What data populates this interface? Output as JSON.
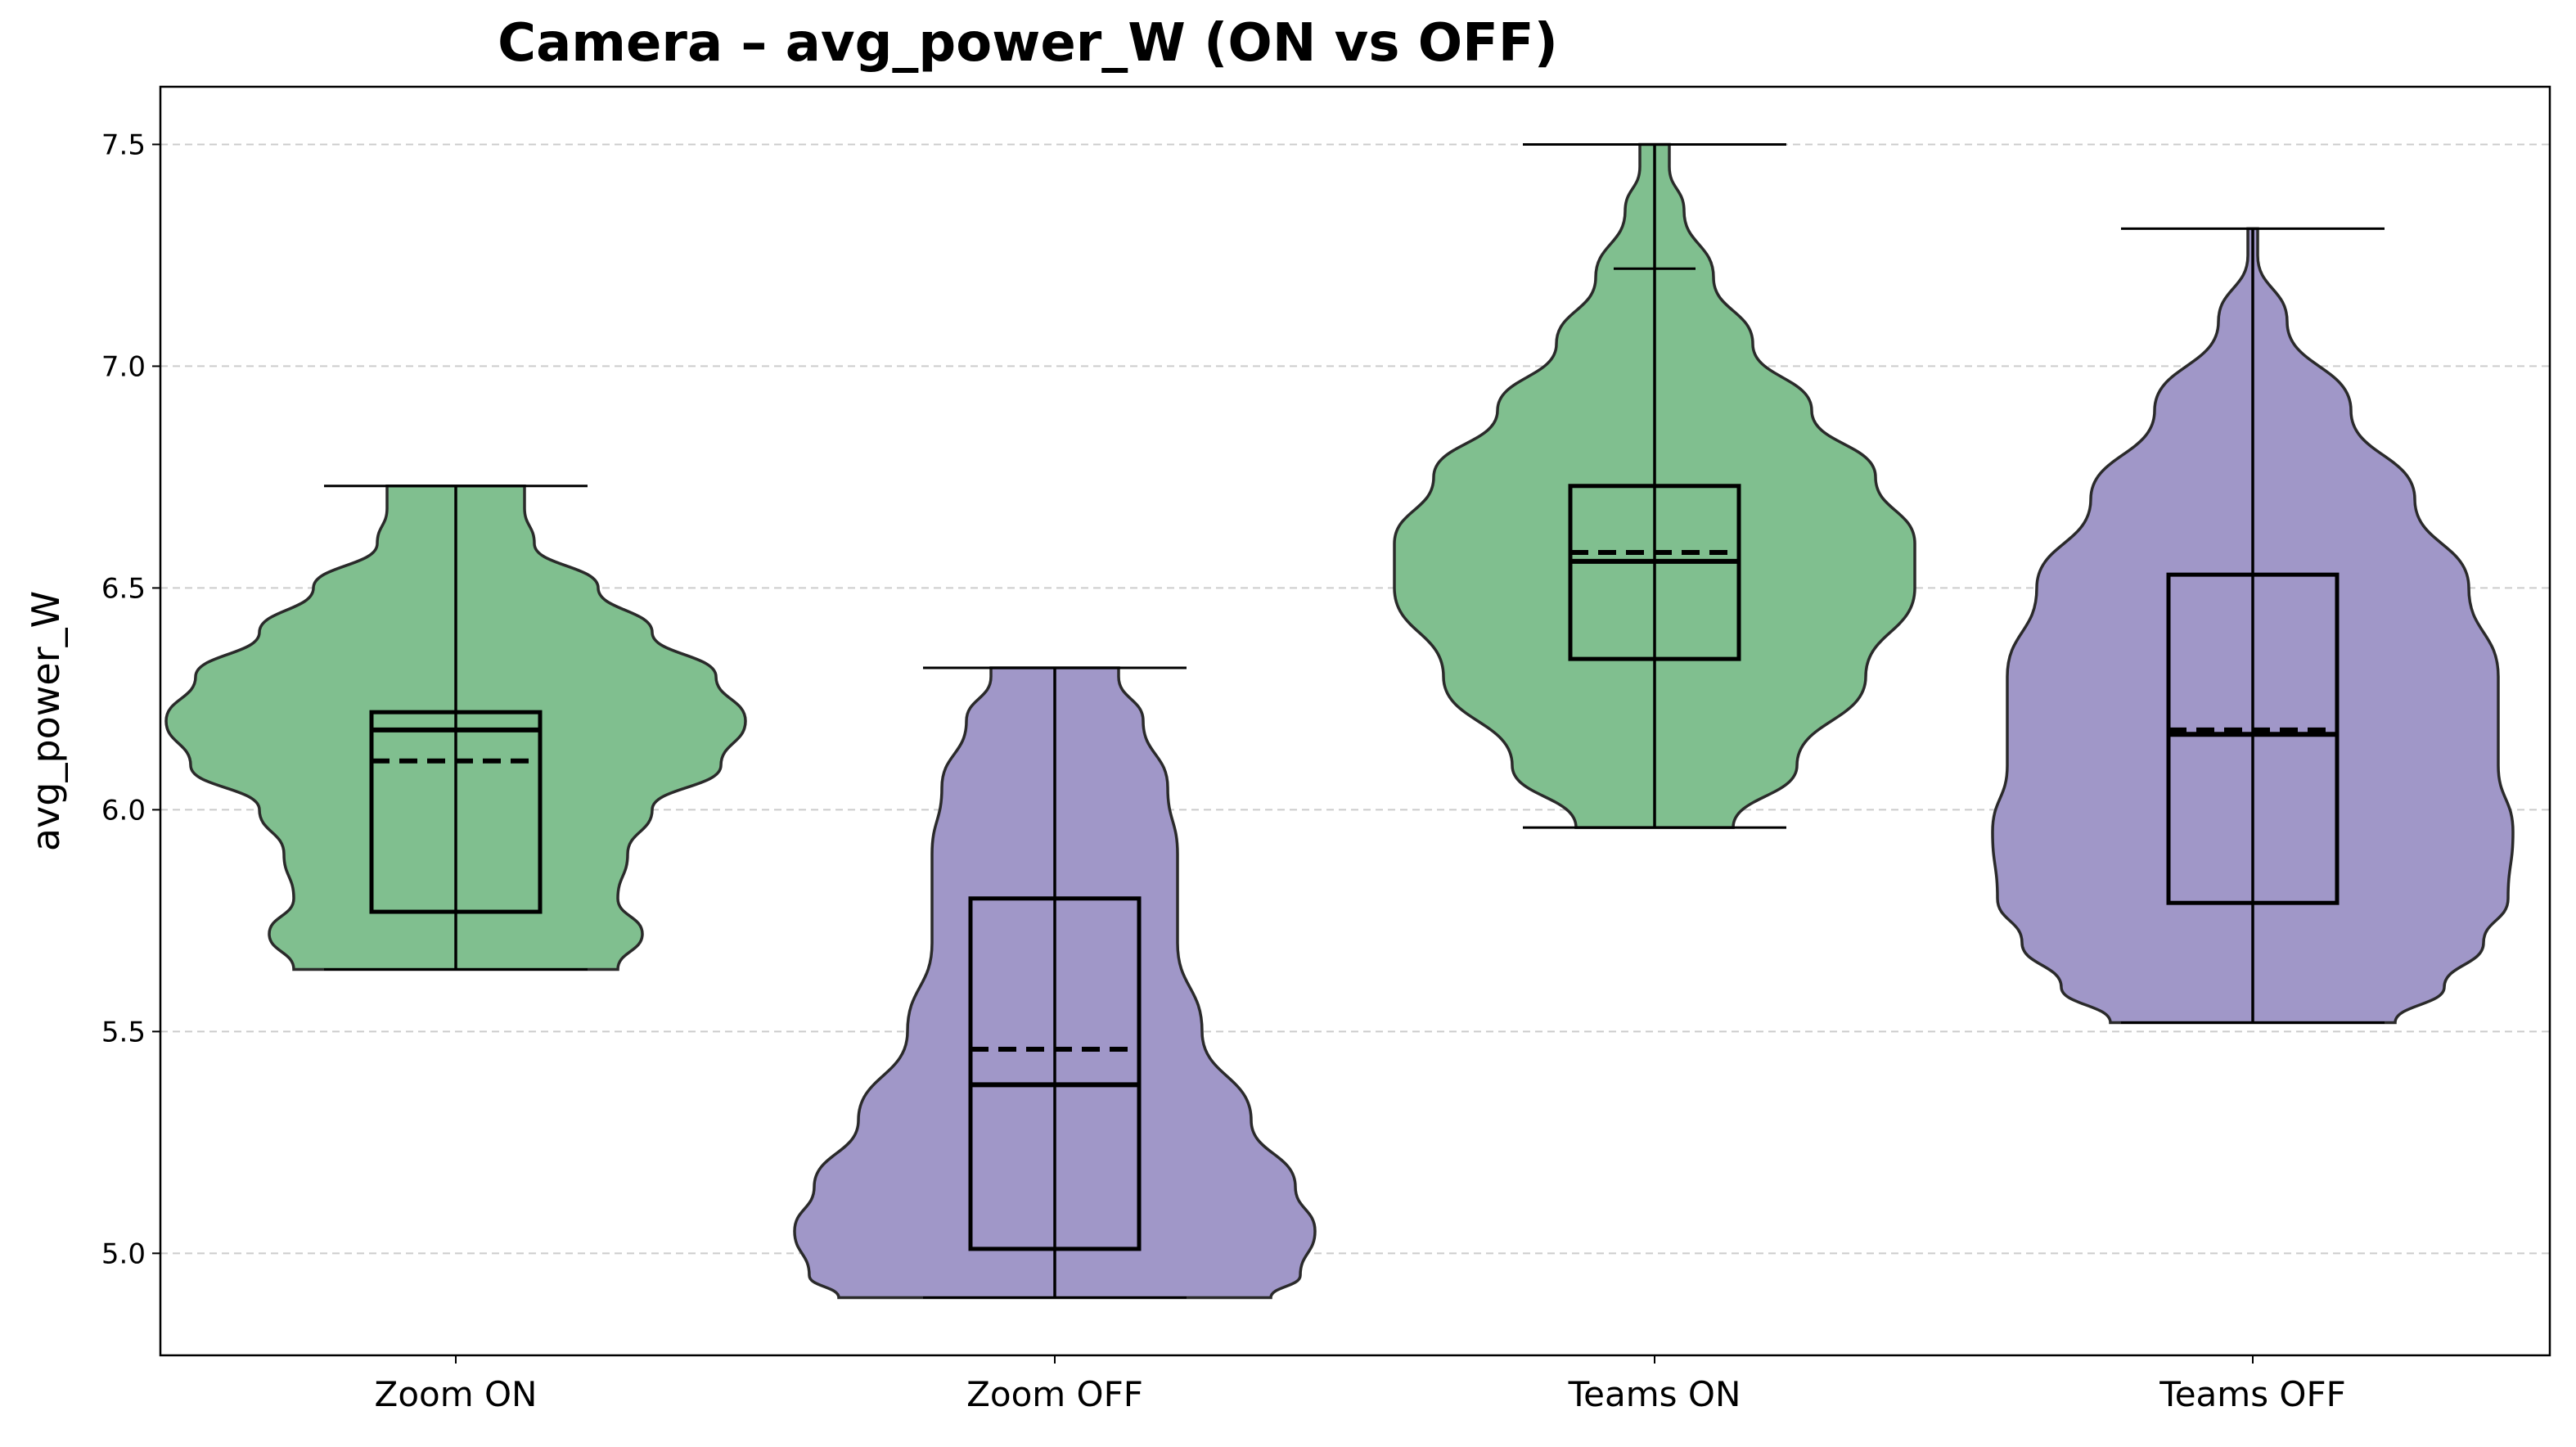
{
  "chart_data": {
    "type": "violin",
    "title": "Camera – avg_power_W (ON vs OFF)",
    "xlabel": "",
    "ylabel": "avg_power_W",
    "ylim": [
      4.77,
      7.63
    ],
    "yticks": [
      "5.0",
      "5.5",
      "6.0",
      "6.5",
      "7.0",
      "7.5"
    ],
    "grid": "horizontal dashed",
    "categories": [
      "Zoom ON",
      "Zoom OFF",
      "Teams ON",
      "Teams OFF"
    ],
    "colors": {
      "on": "#80bf8f",
      "off": "#a097c8"
    },
    "groups": [
      {
        "name": "Zoom ON",
        "color": "on",
        "min": 5.64,
        "q1": 5.77,
        "median": 6.18,
        "mean": 6.11,
        "q3": 6.22,
        "max": 6.73,
        "extra_tick": null,
        "density": [
          [
            5.64,
            0.33
          ],
          [
            5.72,
            0.38
          ],
          [
            5.8,
            0.33
          ],
          [
            5.9,
            0.35
          ],
          [
            6.0,
            0.4
          ],
          [
            6.1,
            0.54
          ],
          [
            6.2,
            0.59
          ],
          [
            6.3,
            0.53
          ],
          [
            6.4,
            0.4
          ],
          [
            6.5,
            0.29
          ],
          [
            6.6,
            0.16
          ],
          [
            6.68,
            0.14
          ],
          [
            6.73,
            0.14
          ]
        ]
      },
      {
        "name": "Zoom OFF",
        "color": "off",
        "min": 4.9,
        "q1": 5.01,
        "median": 5.38,
        "mean": 5.46,
        "q3": 5.8,
        "max": 6.32,
        "extra_tick": null,
        "density": [
          [
            4.9,
            0.44
          ],
          [
            4.95,
            0.5
          ],
          [
            5.05,
            0.53
          ],
          [
            5.15,
            0.49
          ],
          [
            5.3,
            0.4
          ],
          [
            5.5,
            0.3
          ],
          [
            5.7,
            0.25
          ],
          [
            5.9,
            0.25
          ],
          [
            6.05,
            0.23
          ],
          [
            6.2,
            0.18
          ],
          [
            6.3,
            0.13
          ],
          [
            6.32,
            0.13
          ]
        ]
      },
      {
        "name": "Teams ON",
        "color": "on",
        "min": 5.96,
        "q1": 6.34,
        "median": 6.56,
        "mean": 6.58,
        "q3": 6.73,
        "max": 7.5,
        "extra_tick": 7.22,
        "density": [
          [
            5.96,
            0.16
          ],
          [
            6.1,
            0.29
          ],
          [
            6.3,
            0.43
          ],
          [
            6.5,
            0.53
          ],
          [
            6.6,
            0.53
          ],
          [
            6.75,
            0.45
          ],
          [
            6.9,
            0.32
          ],
          [
            7.05,
            0.2
          ],
          [
            7.2,
            0.12
          ],
          [
            7.35,
            0.06
          ],
          [
            7.45,
            0.03
          ],
          [
            7.5,
            0.03
          ]
        ]
      },
      {
        "name": "Teams OFF",
        "color": "off",
        "min": 5.52,
        "q1": 5.79,
        "median": 6.17,
        "mean": 6.18,
        "q3": 6.53,
        "max": 7.31,
        "extra_tick": null,
        "density": [
          [
            5.52,
            0.29
          ],
          [
            5.6,
            0.39
          ],
          [
            5.7,
            0.47
          ],
          [
            5.8,
            0.52
          ],
          [
            5.95,
            0.53
          ],
          [
            6.1,
            0.5
          ],
          [
            6.3,
            0.5
          ],
          [
            6.5,
            0.44
          ],
          [
            6.7,
            0.33
          ],
          [
            6.9,
            0.2
          ],
          [
            7.1,
            0.07
          ],
          [
            7.25,
            0.01
          ],
          [
            7.31,
            0.01
          ]
        ]
      }
    ]
  }
}
